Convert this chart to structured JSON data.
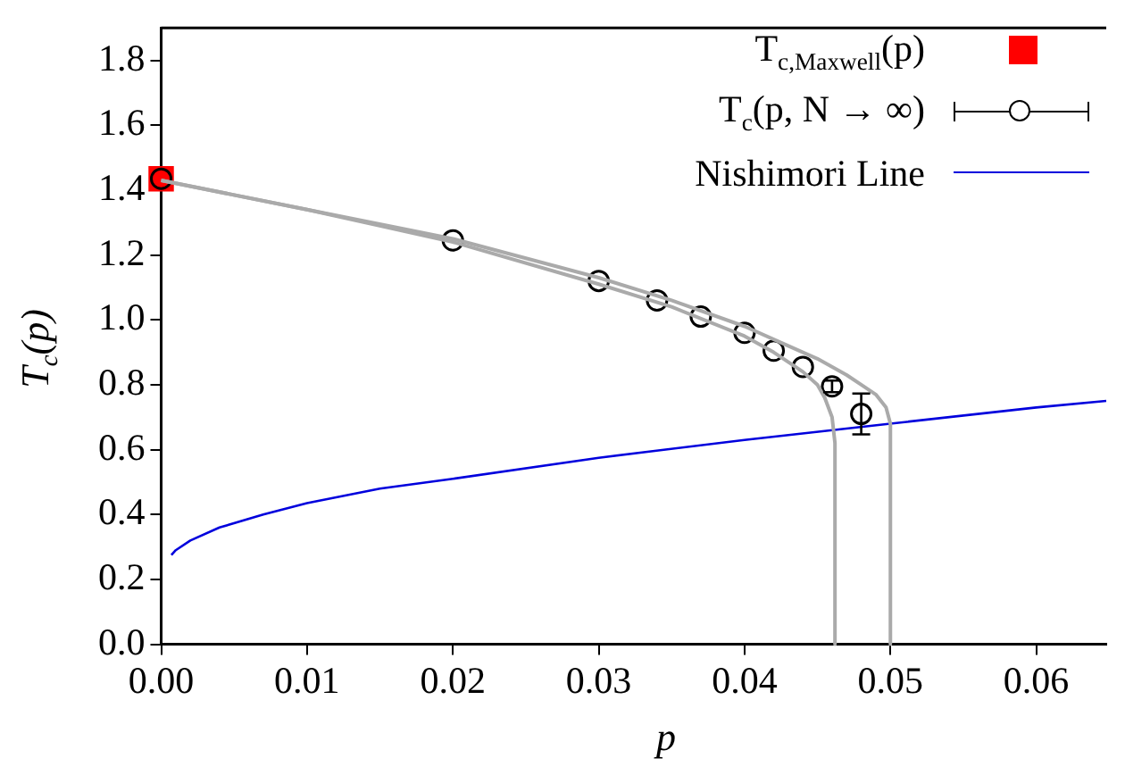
{
  "chart_data": {
    "type": "line",
    "xlabel": "p",
    "ylabel": "T$_{c}$(p)",
    "legend": "top right",
    "xlim": [
      0,
      0.0648
    ],
    "ylim": [
      0,
      1.9
    ],
    "xticks": [
      {
        "value": 0,
        "label": "0.00"
      },
      {
        "value": 0.01,
        "label": "0.01"
      },
      {
        "value": 0.02,
        "label": "0.02"
      },
      {
        "value": 0.03,
        "label": "0.03"
      },
      {
        "value": 0.04,
        "label": "0.04"
      },
      {
        "value": 0.05,
        "label": "0.05"
      },
      {
        "value": 0.06,
        "label": "0.06"
      }
    ],
    "yticks": [
      {
        "value": 0,
        "label": "0.0"
      },
      {
        "value": 0.2,
        "label": "0.2"
      },
      {
        "value": 0.4,
        "label": "0.4"
      },
      {
        "value": 0.6,
        "label": "0.6"
      },
      {
        "value": 0.8,
        "label": "0.8"
      },
      {
        "value": 1,
        "label": "1.0"
      },
      {
        "value": 1.2,
        "label": "1.2"
      },
      {
        "value": 1.4,
        "label": "1.4"
      },
      {
        "value": 1.6,
        "label": "1.6"
      },
      {
        "value": 1.8,
        "label": "1.8"
      }
    ],
    "series": [
      {
        "type": "line",
        "color": "#aaaaaa",
        "marker": "none",
        "line_style": "solid",
        "x": [
          0,
          0.01,
          0.02,
          0.03,
          0.035,
          0.04,
          0.042,
          0.044,
          0.045,
          0.0455,
          0.046,
          0.0462,
          0.0462
        ],
        "values": [
          1.43,
          1.34,
          1.24,
          1.11,
          1.04,
          0.95,
          0.9,
          0.84,
          0.8,
          0.76,
          0.7,
          0.62,
          0
        ]
      },
      {
        "type": "line",
        "color": "#aaaaaa",
        "marker": "none",
        "line_style": "solid",
        "x": [
          0,
          0.01,
          0.02,
          0.03,
          0.035,
          0.04,
          0.043,
          0.045,
          0.047,
          0.048,
          0.049,
          0.0497,
          0.05,
          0.05
        ],
        "values": [
          1.43,
          1.34,
          1.25,
          1.13,
          1.06,
          0.98,
          0.92,
          0.88,
          0.83,
          0.8,
          0.77,
          0.73,
          0.68,
          0
        ]
      },
      {
        "type": "line",
        "name": "Nishimori Line",
        "color": "#0000dd",
        "marker": "none",
        "line_style": "solid",
        "x": [
          0.0007,
          0.001,
          0.002,
          0.004,
          0.007,
          0.01,
          0.015,
          0.02,
          0.03,
          0.04,
          0.05,
          0.06,
          0.0648
        ],
        "values": [
          0.275,
          0.29,
          0.32,
          0.36,
          0.4,
          0.435,
          0.48,
          0.51,
          0.575,
          0.63,
          0.68,
          0.73,
          0.75
        ]
      },
      {
        "type": "scatter",
        "name": "T$_{c}$(p, N → ∞)",
        "color": "#000000",
        "marker": "circle",
        "x": [
          0,
          0.02,
          0.03,
          0.034,
          0.037,
          0.04,
          0.042,
          0.044,
          0.046,
          0.048
        ],
        "values": [
          1.435,
          1.245,
          1.12,
          1.06,
          1.01,
          0.96,
          0.905,
          0.855,
          0.795,
          0.71
        ],
        "errors": [
          null,
          null,
          null,
          null,
          null,
          null,
          null,
          null,
          0.018,
          0.063
        ]
      },
      {
        "type": "scatter",
        "name": "T$_{c,Maxwell}$(p)",
        "color": "#ff0000",
        "marker": "square",
        "x": [
          0
        ],
        "values": [
          1.435
        ]
      }
    ]
  }
}
